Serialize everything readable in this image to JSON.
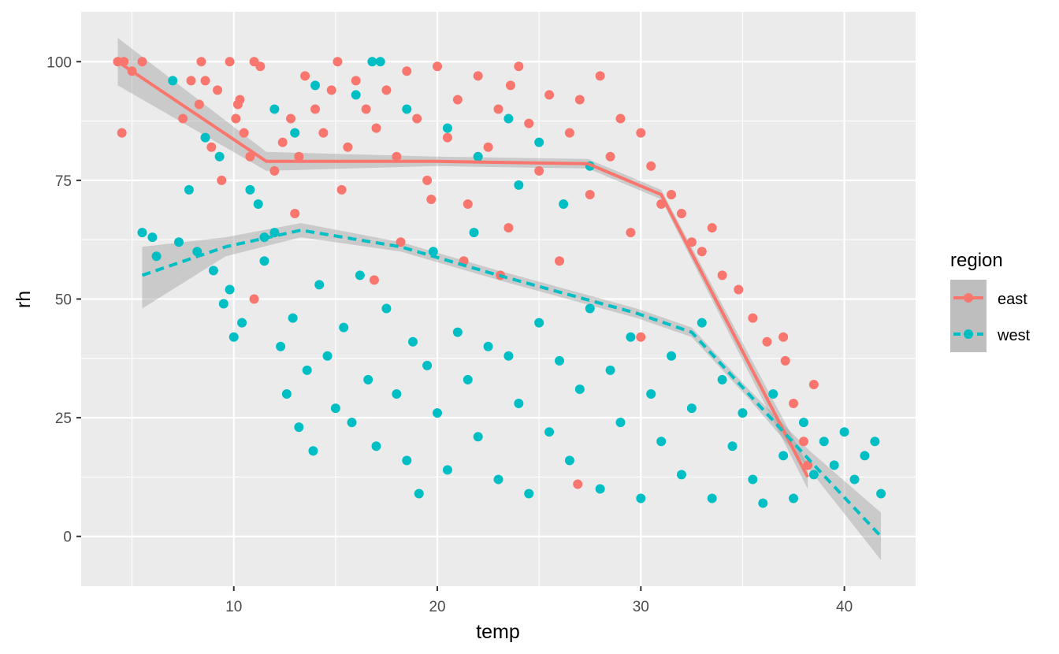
{
  "chart_data": {
    "type": "scatter",
    "xlabel": "temp",
    "ylabel": "rh",
    "xlim": [
      2.5,
      43.5
    ],
    "ylim": [
      -10.5,
      110.5
    ],
    "x_ticks": [
      10,
      20,
      30,
      40
    ],
    "x_tick_labels": [
      "10",
      "20",
      "30",
      "40"
    ],
    "y_ticks": [
      0,
      25,
      50,
      75,
      100
    ],
    "y_tick_labels": [
      "0",
      "25",
      "50",
      "75",
      "100"
    ],
    "grid": true,
    "legend": {
      "title": "region",
      "position": "right",
      "entries": [
        "east",
        "west"
      ]
    },
    "series": [
      {
        "name": "east",
        "color": "#F8766D",
        "points": [
          [
            4.3,
            100
          ],
          [
            4.6,
            100
          ],
          [
            4.5,
            85
          ],
          [
            5.0,
            98
          ],
          [
            5.5,
            100
          ],
          [
            7.5,
            88
          ],
          [
            7.9,
            96
          ],
          [
            8.3,
            91
          ],
          [
            8.4,
            100
          ],
          [
            8.6,
            96
          ],
          [
            8.9,
            82
          ],
          [
            9.2,
            94
          ],
          [
            9.4,
            75
          ],
          [
            9.8,
            100
          ],
          [
            10.1,
            88
          ],
          [
            10.2,
            91
          ],
          [
            10.3,
            92
          ],
          [
            10.5,
            85
          ],
          [
            10.8,
            80
          ],
          [
            11.0,
            100
          ],
          [
            11.3,
            99
          ],
          [
            11.0,
            50
          ],
          [
            12.0,
            77
          ],
          [
            12.4,
            83
          ],
          [
            12.8,
            88
          ],
          [
            13.2,
            80
          ],
          [
            13.5,
            97
          ],
          [
            14.0,
            90
          ],
          [
            14.4,
            85
          ],
          [
            14.8,
            94
          ],
          [
            15.1,
            100
          ],
          [
            15.6,
            82
          ],
          [
            16.0,
            96
          ],
          [
            16.5,
            90
          ],
          [
            17.0,
            86
          ],
          [
            17.5,
            94
          ],
          [
            18.0,
            80
          ],
          [
            18.5,
            98
          ],
          [
            19.0,
            88
          ],
          [
            19.5,
            75
          ],
          [
            20.0,
            99
          ],
          [
            20.5,
            84
          ],
          [
            21.0,
            92
          ],
          [
            21.5,
            70
          ],
          [
            22.0,
            97
          ],
          [
            22.5,
            82
          ],
          [
            23.0,
            90
          ],
          [
            23.5,
            65
          ],
          [
            24.0,
            99
          ],
          [
            24.5,
            87
          ],
          [
            25.0,
            77
          ],
          [
            25.5,
            93
          ],
          [
            26.0,
            58
          ],
          [
            26.5,
            85
          ],
          [
            27.0,
            92
          ],
          [
            27.5,
            72
          ],
          [
            28.0,
            97
          ],
          [
            28.5,
            80
          ],
          [
            29.0,
            88
          ],
          [
            29.5,
            64
          ],
          [
            30.0,
            85
          ],
          [
            30.5,
            78
          ],
          [
            31.0,
            70
          ],
          [
            31.5,
            72
          ],
          [
            32.0,
            68
          ],
          [
            32.5,
            62
          ],
          [
            33.0,
            60
          ],
          [
            33.5,
            65
          ],
          [
            34.0,
            55
          ],
          [
            34.8,
            52
          ],
          [
            35.5,
            46
          ],
          [
            36.2,
            41
          ],
          [
            37.0,
            42
          ],
          [
            37.1,
            37
          ],
          [
            37.5,
            28
          ],
          [
            38.0,
            20
          ],
          [
            38.2,
            15
          ],
          [
            38.5,
            32
          ],
          [
            30.0,
            42
          ],
          [
            16.9,
            54
          ],
          [
            18.2,
            62
          ],
          [
            21.3,
            58
          ],
          [
            23.1,
            55
          ],
          [
            26.9,
            11
          ],
          [
            23.6,
            95
          ],
          [
            19.7,
            71
          ],
          [
            15.3,
            73
          ],
          [
            13.0,
            68
          ]
        ]
      },
      {
        "name": "west",
        "color": "#00BFC4",
        "points": [
          [
            5.5,
            64
          ],
          [
            6.0,
            63
          ],
          [
            6.2,
            59
          ],
          [
            7.0,
            96
          ],
          [
            7.3,
            62
          ],
          [
            7.8,
            73
          ],
          [
            8.2,
            60
          ],
          [
            8.6,
            84
          ],
          [
            9.0,
            56
          ],
          [
            9.3,
            80
          ],
          [
            9.5,
            49
          ],
          [
            9.8,
            52
          ],
          [
            10.0,
            42
          ],
          [
            10.4,
            45
          ],
          [
            10.8,
            73
          ],
          [
            11.2,
            70
          ],
          [
            11.5,
            58
          ],
          [
            12.0,
            64
          ],
          [
            12.3,
            40
          ],
          [
            12.6,
            30
          ],
          [
            12.9,
            46
          ],
          [
            13.2,
            23
          ],
          [
            13.6,
            35
          ],
          [
            13.9,
            18
          ],
          [
            14.2,
            53
          ],
          [
            14.6,
            38
          ],
          [
            15.0,
            27
          ],
          [
            15.4,
            44
          ],
          [
            15.8,
            24
          ],
          [
            16.2,
            55
          ],
          [
            16.6,
            33
          ],
          [
            17.0,
            19
          ],
          [
            17.5,
            48
          ],
          [
            18.0,
            30
          ],
          [
            18.5,
            16
          ],
          [
            18.8,
            41
          ],
          [
            19.1,
            9
          ],
          [
            19.5,
            36
          ],
          [
            20.0,
            26
          ],
          [
            20.5,
            14
          ],
          [
            21.0,
            43
          ],
          [
            21.5,
            33
          ],
          [
            22.0,
            21
          ],
          [
            22.5,
            40
          ],
          [
            23.0,
            12
          ],
          [
            23.5,
            38
          ],
          [
            24.0,
            28
          ],
          [
            24.5,
            9
          ],
          [
            25.0,
            45
          ],
          [
            25.5,
            22
          ],
          [
            26.0,
            37
          ],
          [
            26.5,
            16
          ],
          [
            27.0,
            31
          ],
          [
            27.5,
            48
          ],
          [
            28.0,
            10
          ],
          [
            28.5,
            35
          ],
          [
            29.0,
            24
          ],
          [
            29.5,
            42
          ],
          [
            30.0,
            8
          ],
          [
            30.5,
            30
          ],
          [
            31.0,
            20
          ],
          [
            31.5,
            38
          ],
          [
            32.0,
            13
          ],
          [
            32.5,
            27
          ],
          [
            33.0,
            45
          ],
          [
            33.5,
            8
          ],
          [
            34.0,
            33
          ],
          [
            34.5,
            19
          ],
          [
            35.0,
            26
          ],
          [
            35.5,
            12
          ],
          [
            36.0,
            7
          ],
          [
            36.5,
            30
          ],
          [
            37.0,
            17
          ],
          [
            37.5,
            8
          ],
          [
            38.0,
            24
          ],
          [
            38.5,
            13
          ],
          [
            39.0,
            20
          ],
          [
            39.5,
            15
          ],
          [
            40.0,
            22
          ],
          [
            40.5,
            12
          ],
          [
            41.0,
            17
          ],
          [
            41.5,
            20
          ],
          [
            41.8,
            9
          ],
          [
            14.0,
            95
          ],
          [
            16.0,
            93
          ],
          [
            18.5,
            90
          ],
          [
            20.5,
            86
          ],
          [
            22.0,
            80
          ],
          [
            23.5,
            88
          ],
          [
            24.0,
            74
          ],
          [
            25.0,
            83
          ],
          [
            26.2,
            70
          ],
          [
            27.5,
            78
          ],
          [
            12.0,
            90
          ],
          [
            13.0,
            85
          ],
          [
            17.2,
            100
          ],
          [
            16.8,
            100
          ],
          [
            19.8,
            60
          ],
          [
            21.8,
            64
          ],
          [
            11.5,
            63
          ]
        ]
      }
    ],
    "trend_lines": [
      {
        "series": "east",
        "style": "solid",
        "points": [
          [
            4.3,
            100
          ],
          [
            11.6,
            79
          ],
          [
            19.9,
            79
          ],
          [
            27.4,
            78.5
          ],
          [
            31.0,
            72
          ],
          [
            38.2,
            12.5
          ]
        ],
        "ci_upper": [
          [
            4.3,
            105
          ],
          [
            11.6,
            81
          ],
          [
            19.9,
            80
          ],
          [
            27.4,
            79.5
          ],
          [
            31.0,
            73
          ],
          [
            38.2,
            15
          ]
        ],
        "ci_lower": [
          [
            4.3,
            95
          ],
          [
            11.6,
            77
          ],
          [
            19.9,
            78
          ],
          [
            27.4,
            77.5
          ],
          [
            31.0,
            71
          ],
          [
            38.2,
            10
          ]
        ]
      },
      {
        "series": "west",
        "style": "dashed",
        "points": [
          [
            5.5,
            55
          ],
          [
            9.6,
            61
          ],
          [
            13.3,
            64.5
          ],
          [
            18.2,
            61
          ],
          [
            23.0,
            55
          ],
          [
            29.8,
            47
          ],
          [
            32.5,
            43
          ],
          [
            35.3,
            30
          ],
          [
            38.3,
            16
          ],
          [
            41.8,
            0
          ]
        ],
        "ci_upper": [
          [
            5.5,
            61
          ],
          [
            9.6,
            63
          ],
          [
            13.3,
            66
          ],
          [
            18.2,
            62
          ],
          [
            23.0,
            56
          ],
          [
            29.8,
            48
          ],
          [
            32.5,
            44
          ],
          [
            35.3,
            31
          ],
          [
            38.3,
            18
          ],
          [
            41.8,
            5
          ]
        ],
        "ci_lower": [
          [
            5.5,
            48
          ],
          [
            9.6,
            59
          ],
          [
            13.3,
            63
          ],
          [
            18.2,
            60
          ],
          [
            23.0,
            54
          ],
          [
            29.8,
            46
          ],
          [
            32.5,
            42
          ],
          [
            35.3,
            29
          ],
          [
            38.3,
            14
          ],
          [
            41.8,
            -5
          ]
        ]
      }
    ]
  }
}
